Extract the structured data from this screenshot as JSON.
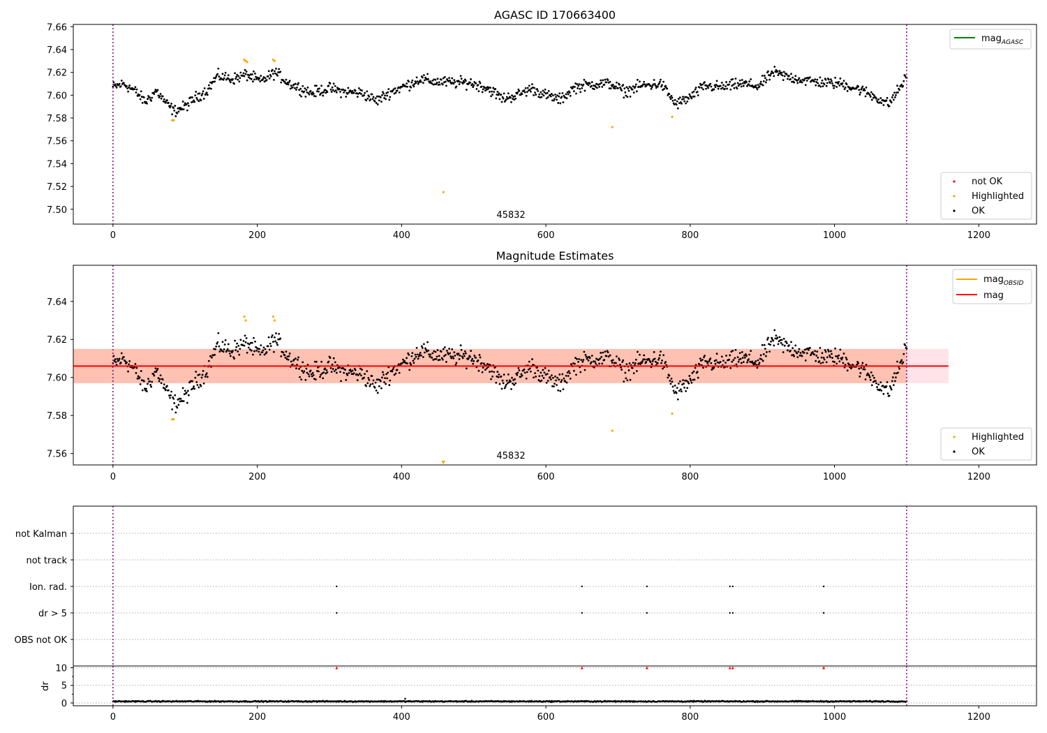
{
  "colors": {
    "ok": "#000000",
    "highlighted": "#ffa500",
    "not_ok": "#ff0000",
    "agasc_line": "#008000",
    "obsid_line": "#ffa500",
    "mag_line": "#ff0000",
    "obsid_band": "#ffa07a",
    "mag_band": "#ffc0cb",
    "obs_boundary": "#800080"
  },
  "chart_data": [
    {
      "type": "scatter",
      "title": "AGASC ID 170663400",
      "xlim": [
        -55,
        1280
      ],
      "ylim": [
        7.487,
        7.662
      ],
      "xticks": [
        "0",
        "200",
        "400",
        "600",
        "800",
        "1000",
        "1200"
      ],
      "yticks": [
        "7.50",
        "7.52",
        "7.54",
        "7.56",
        "7.58",
        "7.60",
        "7.62",
        "7.64",
        "7.66"
      ],
      "grid": false,
      "obsid_label": "45832",
      "obs_boundaries": [
        0,
        1100
      ],
      "series": [
        {
          "name": "OK",
          "description": "~1100 samples, values between 7.584 and 7.626 (mean about 7.606)"
        },
        {
          "name": "Highlighted",
          "x": [
            82,
            84,
            182,
            184,
            186,
            222,
            224,
            458,
            692,
            775
          ],
          "y": [
            7.578,
            7.578,
            7.631,
            7.63,
            7.629,
            7.631,
            7.63,
            7.515,
            7.572,
            7.581
          ]
        },
        {
          "name": "not OK",
          "x": [],
          "y": []
        }
      ],
      "legend_upper": {
        "label": "mag",
        "subscript": "AGASC"
      },
      "legend_lower": [
        "not OK",
        "Highlighted",
        "OK"
      ]
    },
    {
      "type": "scatter",
      "title": "Magnitude Estimates",
      "xlim": [
        -55,
        1280
      ],
      "ylim": [
        7.554,
        7.659
      ],
      "xticks": [
        "0",
        "200",
        "400",
        "600",
        "800",
        "1000",
        "1200"
      ],
      "yticks": [
        "7.56",
        "7.58",
        "7.60",
        "7.62",
        "7.64"
      ],
      "grid": false,
      "obsid_label": "45832",
      "obs_boundaries": [
        0,
        1100
      ],
      "mag": 7.606,
      "obsid_mag": 7.606,
      "band": [
        7.597,
        7.615
      ],
      "band_xlim_mag": [
        -55,
        1158
      ],
      "band_xlim_obsid": [
        -55,
        1100
      ],
      "series": [
        {
          "name": "OK",
          "description": "same samples as upper panel"
        },
        {
          "name": "Highlighted",
          "x": [
            82,
            84,
            182,
            184,
            222,
            224,
            692,
            775
          ],
          "y": [
            7.578,
            7.578,
            7.632,
            7.63,
            7.632,
            7.63,
            7.572,
            7.581
          ]
        },
        {
          "name": "Highlighted (off-scale)",
          "x": [
            458
          ],
          "y": [
            7.554
          ]
        }
      ],
      "legend_upper": [
        {
          "label": "mag",
          "subscript": "OBSID"
        },
        {
          "label": "mag",
          "subscript": ""
        }
      ],
      "legend_lower": [
        "Highlighted",
        "OK"
      ]
    },
    {
      "type": "scatter",
      "title": "",
      "xlim": [
        -55,
        1280
      ],
      "categories": [
        "not Kalman",
        "not track",
        "Ion. rad.",
        "dr > 5",
        "OBS not OK"
      ],
      "grid": true,
      "obs_boundaries": [
        0,
        1100
      ],
      "flags": [
        {
          "category": "Ion. rad.",
          "x": [
            310,
            650,
            740,
            855,
            859,
            985
          ]
        },
        {
          "category": "dr > 5",
          "x": [
            310,
            650,
            740,
            855,
            859,
            985
          ]
        }
      ]
    },
    {
      "type": "scatter",
      "title": "",
      "ylabel": "dr",
      "xlim": [
        -55,
        1280
      ],
      "ylim": [
        -0.8,
        10.5
      ],
      "xticks": [
        "0",
        "200",
        "400",
        "600",
        "800",
        "1000",
        "1200"
      ],
      "yticks": [
        "0",
        "5",
        "10"
      ],
      "grid": true,
      "obs_boundaries": [
        0,
        1100
      ],
      "clipped_markers": {
        "x": [
          310,
          650,
          740,
          855,
          859,
          985
        ],
        "y": [
          10,
          10,
          10,
          10,
          10,
          10
        ]
      },
      "series": [
        {
          "name": "dr",
          "description": "~1100 samples near 0.5, values 0 to 1.2"
        }
      ]
    }
  ]
}
